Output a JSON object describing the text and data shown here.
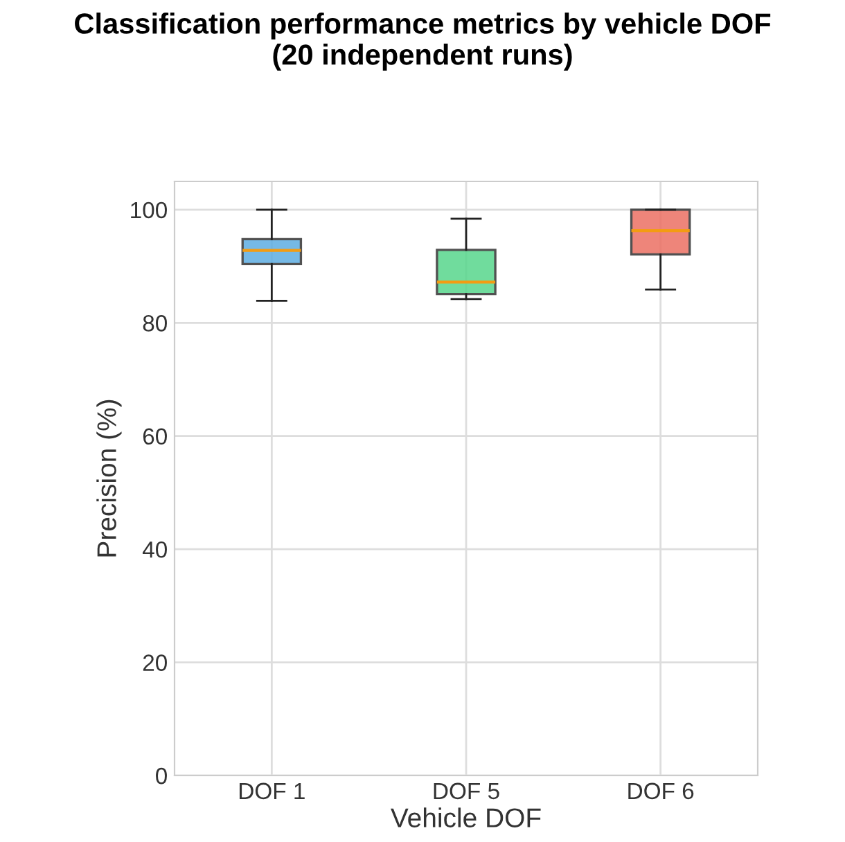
{
  "chart_data": {
    "type": "box",
    "title": "Classification performance metrics by vehicle DOF\n(20 independent runs)",
    "xlabel": "Vehicle DOF",
    "ylabel": "Precision (%)",
    "categories": [
      "DOF 1",
      "DOF 5",
      "DOF 6"
    ],
    "colors": [
      "#5dade2",
      "#58d68d",
      "#ec7063"
    ],
    "boxes": [
      {
        "low": 83.9,
        "q1": 90.4,
        "median": 92.8,
        "q3": 94.8,
        "high": 100
      },
      {
        "low": 84.2,
        "q1": 85.1,
        "median": 87.2,
        "q3": 92.9,
        "high": 98.4
      },
      {
        "low": 85.9,
        "q1": 92.1,
        "median": 96.3,
        "q3": 100,
        "high": 100
      }
    ],
    "ylim": [
      0,
      105
    ],
    "yticks": [
      0,
      20,
      40,
      60,
      80,
      100
    ],
    "grid": true
  }
}
